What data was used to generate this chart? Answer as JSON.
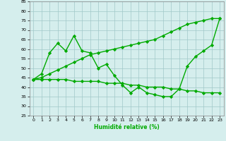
{
  "x": [
    0,
    1,
    2,
    3,
    4,
    5,
    6,
    7,
    8,
    9,
    10,
    11,
    12,
    13,
    14,
    15,
    16,
    17,
    18,
    19,
    20,
    21,
    22,
    23
  ],
  "line_volatile": [
    44,
    47,
    58,
    63,
    59,
    67,
    59,
    58,
    50,
    52,
    46,
    41,
    37,
    40,
    37,
    36,
    35,
    35,
    39,
    51,
    56,
    59,
    62,
    76
  ],
  "line_upper": [
    44,
    45,
    47,
    49,
    51,
    53,
    55,
    57,
    58,
    59,
    60,
    61,
    62,
    63,
    64,
    65,
    67,
    69,
    71,
    73,
    74,
    75,
    76,
    76
  ],
  "line_lower": [
    44,
    44,
    44,
    44,
    44,
    43,
    43,
    43,
    43,
    42,
    42,
    42,
    41,
    41,
    40,
    40,
    40,
    39,
    39,
    38,
    38,
    37,
    37,
    37
  ],
  "line_color": "#00aa00",
  "bg_color": "#d5eeed",
  "grid_color": "#a0c8c8",
  "xlabel": "Humidité relative (%)",
  "ylim": [
    25,
    85
  ],
  "xlim": [
    -0.5,
    23.5
  ],
  "yticks": [
    25,
    30,
    35,
    40,
    45,
    50,
    55,
    60,
    65,
    70,
    75,
    80,
    85
  ],
  "xticks": [
    0,
    1,
    2,
    3,
    4,
    5,
    6,
    7,
    8,
    9,
    10,
    11,
    12,
    13,
    14,
    15,
    16,
    17,
    18,
    19,
    20,
    21,
    22,
    23
  ],
  "marker": "D",
  "markersize": 2.2,
  "linewidth": 1.0
}
